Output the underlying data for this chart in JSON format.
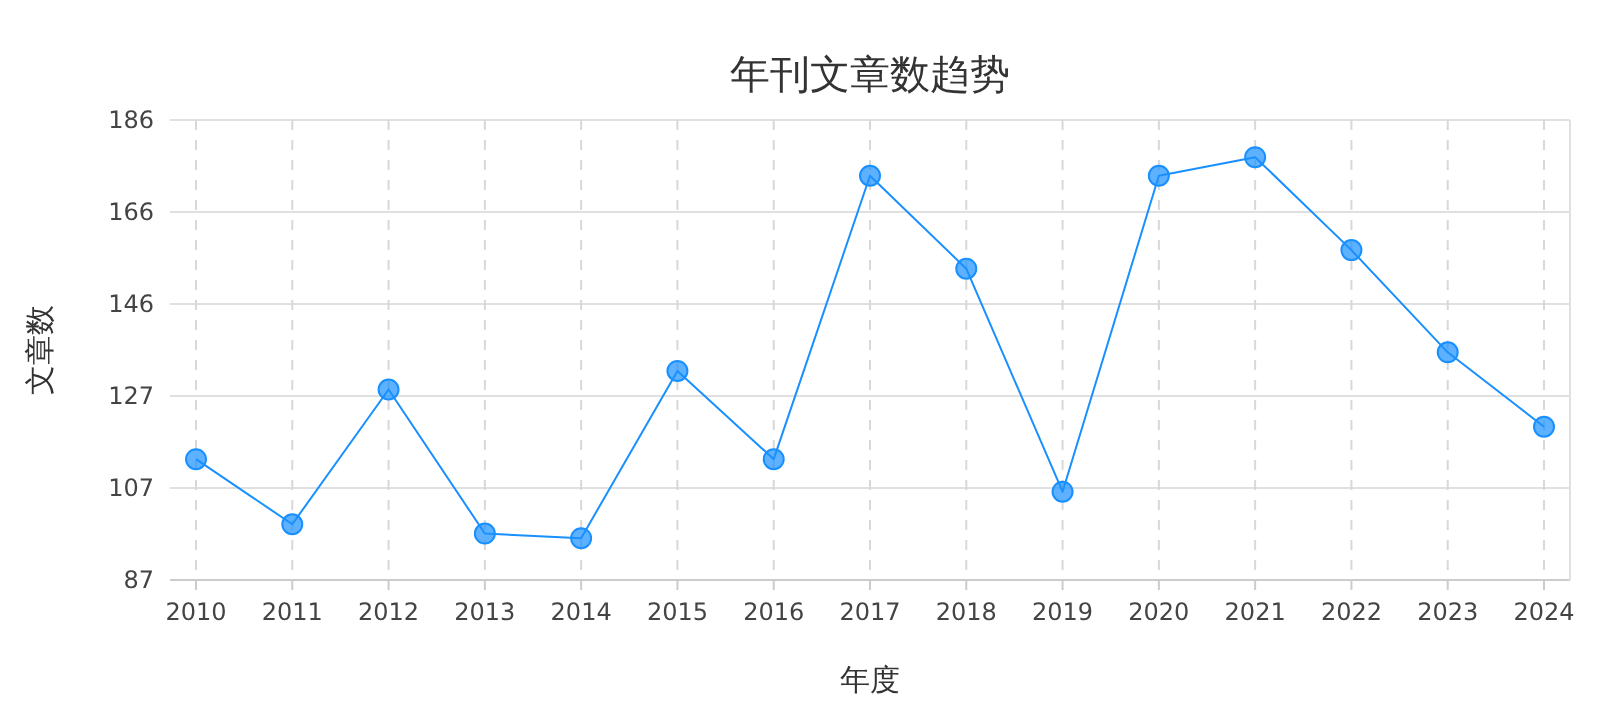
{
  "chart_data": {
    "type": "line",
    "title": "年刊文章数趋势",
    "xlabel": "年度",
    "ylabel": "文章数",
    "categories": [
      "2010",
      "2011",
      "2012",
      "2013",
      "2014",
      "2015",
      "2016",
      "2017",
      "2018",
      "2019",
      "2020",
      "2021",
      "2022",
      "2023",
      "2024"
    ],
    "series": [
      {
        "color": "#1890ff",
        "values": [
          113,
          99,
          128,
          97,
          96,
          132,
          113,
          174,
          154,
          106,
          174,
          178,
          158,
          136,
          120
        ]
      }
    ],
    "ylim": [
      87,
      186
    ],
    "yticks": [
      87,
      {
        "value": 106.8,
        "label": "107"
      },
      {
        "value": 126.6,
        "label": "127"
      },
      {
        "value": 146.4,
        "label": "146"
      },
      {
        "value": 166.2,
        "label": "166"
      },
      186
    ],
    "grid": true,
    "marker": "circle",
    "line_style": "solid"
  }
}
